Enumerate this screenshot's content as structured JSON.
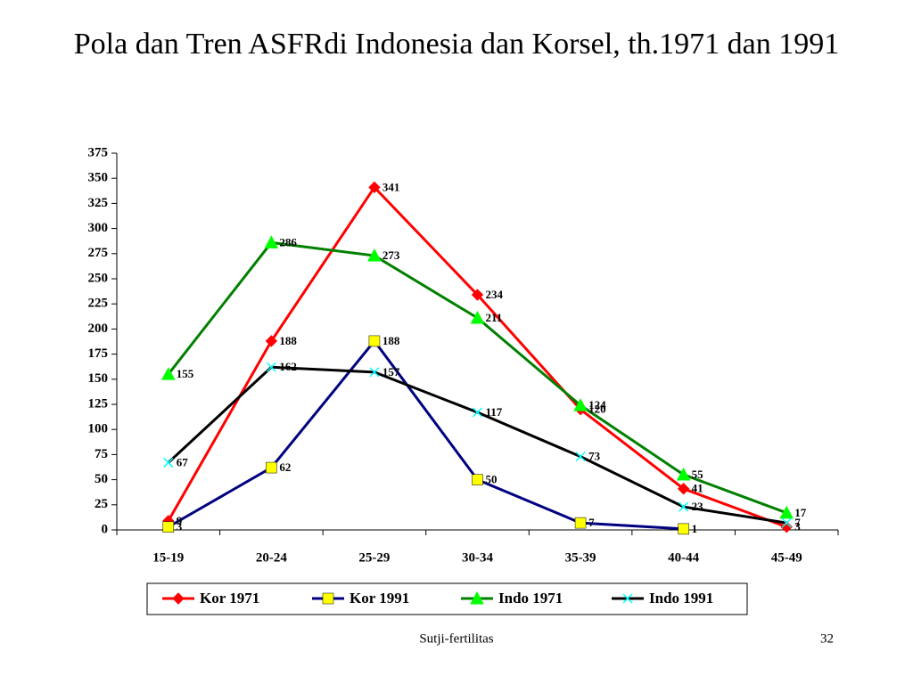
{
  "chart_data": {
    "type": "line",
    "title": "Pola dan Tren ASFRdi Indonesia dan Korsel, th.1971 dan 1991",
    "categories": [
      "15-19",
      "20-24",
      "25-29",
      "30-34",
      "35-39",
      "40-44",
      "45-49"
    ],
    "series": [
      {
        "name": "Kor 1971",
        "color": "#ff0000",
        "marker": "diamond",
        "marker_color": "#ff0000",
        "values": [
          9,
          188,
          341,
          234,
          120,
          41,
          3
        ]
      },
      {
        "name": "Kor 1991",
        "color": "#000080",
        "marker": "square",
        "marker_color": "#ffff00",
        "values": [
          3,
          62,
          188,
          50,
          7,
          1,
          null
        ]
      },
      {
        "name": "Indo 1971",
        "color": "#008000",
        "marker": "triangle",
        "marker_color": "#00ff00",
        "values": [
          155,
          286,
          273,
          211,
          124,
          55,
          17
        ]
      },
      {
        "name": "Indo 1991",
        "color": "#000000",
        "marker": "x",
        "marker_color": "#00ffff",
        "values": [
          67,
          162,
          157,
          117,
          73,
          23,
          7
        ]
      }
    ],
    "ylim": [
      0,
      375
    ],
    "yticks": [
      0,
      25,
      50,
      75,
      100,
      125,
      150,
      175,
      200,
      225,
      250,
      275,
      300,
      325,
      350,
      375
    ],
    "legend": "bottom",
    "footer": "Sutji-fertilitas",
    "page_number": "32"
  }
}
